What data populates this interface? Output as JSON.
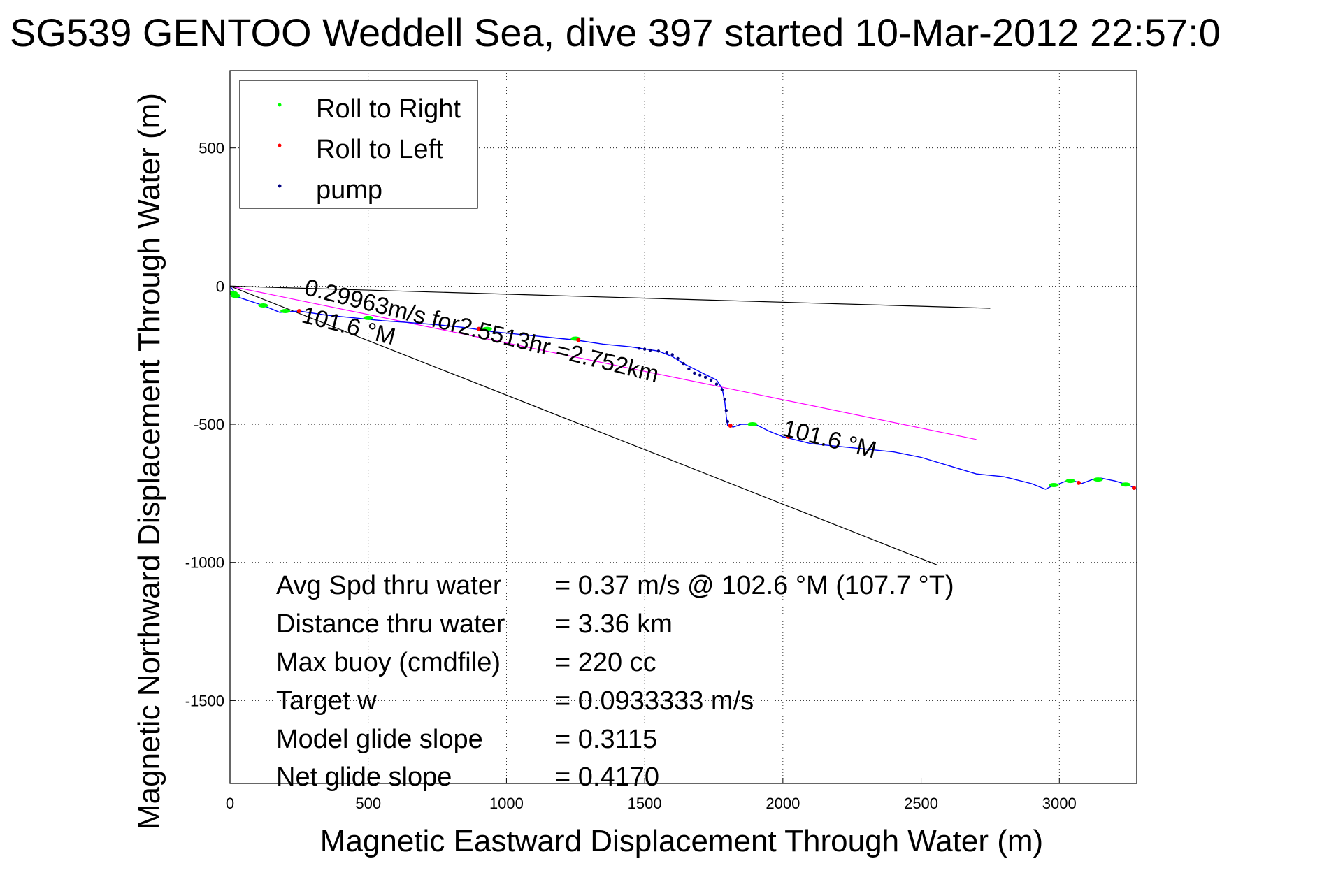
{
  "chart_data": {
    "type": "line",
    "title": "SG539 GENTOO Weddell Sea, dive 397 started 10-Mar-2012 22:57:0",
    "xlabel": "Magnetic Eastward Displacement Through Water (m)",
    "ylabel": "Magnetic Northward Displacement Through Water (m)",
    "xlim": [
      0,
      3280
    ],
    "ylim": [
      -1800,
      780
    ],
    "xticks": [
      0,
      500,
      1000,
      1500,
      2000,
      2500,
      3000
    ],
    "yticks": [
      500,
      0,
      -500,
      -1000,
      -1500
    ],
    "grid": true,
    "legend_position": "top-left",
    "legend": [
      {
        "label": "Roll to Right",
        "color": "#00ff00"
      },
      {
        "label": "Roll to Left",
        "color": "#ff0000"
      },
      {
        "label": "pump",
        "color": "#000080"
      }
    ],
    "track": {
      "color": "#0000ff",
      "x": [
        0,
        30,
        60,
        120,
        180,
        250,
        350,
        450,
        550,
        650,
        750,
        850,
        950,
        1050,
        1150,
        1250,
        1350,
        1450,
        1550,
        1600,
        1640,
        1680,
        1720,
        1760,
        1780,
        1790,
        1795,
        1800,
        1820,
        1850,
        1900,
        1950,
        2000,
        2100,
        2200,
        2300,
        2400,
        2500,
        2600,
        2700,
        2800,
        2900,
        2950,
        2980,
        3000,
        3040,
        3080,
        3120,
        3150,
        3200,
        3250,
        3280
      ],
      "y": [
        0,
        -40,
        -50,
        -70,
        -95,
        -90,
        -105,
        -115,
        -125,
        -132,
        -140,
        -150,
        -165,
        -175,
        -185,
        -195,
        -210,
        -220,
        -235,
        -255,
        -280,
        -300,
        -320,
        -340,
        -370,
        -420,
        -470,
        -505,
        -510,
        -500,
        -500,
        -525,
        -545,
        -570,
        -580,
        -590,
        -600,
        -620,
        -650,
        -680,
        -690,
        -715,
        -735,
        -720,
        -715,
        -700,
        -715,
        -700,
        -695,
        -705,
        -720,
        -735
      ]
    },
    "roll_right_x": [
      10,
      20,
      120,
      200,
      500,
      930,
      1250,
      1890,
      2980,
      3040,
      3140,
      3240
    ],
    "roll_right_y": [
      -25,
      -35,
      -70,
      -90,
      -115,
      -155,
      -190,
      -500,
      -720,
      -705,
      -700,
      -718
    ],
    "roll_left_x": [
      250,
      900,
      1260,
      1810,
      2020,
      3070,
      3270
    ],
    "roll_left_y": [
      -90,
      -155,
      -195,
      -505,
      -545,
      -712,
      -730
    ],
    "pump_x": [
      1480,
      1500,
      1520,
      1550,
      1580,
      1600,
      1620,
      1640,
      1660,
      1680,
      1700,
      1720,
      1740,
      1760,
      1780,
      1790,
      1795,
      1800
    ],
    "pump_y": [
      -225,
      -228,
      -232,
      -235,
      -240,
      -248,
      -262,
      -280,
      -300,
      -315,
      -322,
      -330,
      -340,
      -355,
      -375,
      -410,
      -450,
      -490
    ],
    "lines": [
      {
        "name": "black-upper",
        "color": "#000000",
        "x": [
          0,
          2750
        ],
        "y": [
          0,
          -80
        ]
      },
      {
        "name": "magenta-avg",
        "color": "#ff00ff",
        "x": [
          0,
          2700
        ],
        "y": [
          0,
          -555
        ]
      },
      {
        "name": "black-lower",
        "color": "#000000",
        "x": [
          0,
          2560
        ],
        "y": [
          0,
          -1010
        ]
      }
    ],
    "annotations": [
      {
        "text": "0.29963m/s for2.5513hr =2.752km",
        "x": 265,
        "y": -30,
        "angle": 14
      },
      {
        "text": "101.6 °M",
        "x": 255,
        "y": -130,
        "angle": 14
      },
      {
        "text": "101.6 °M",
        "x": 1995,
        "y": -540,
        "angle": 14
      }
    ]
  },
  "stats": [
    {
      "label": "Avg Spd thru water",
      "value": "=  0.37 m/s @ 102.6 °M (107.7 °T)"
    },
    {
      "label": "Distance thru water",
      "value": "=  3.36 km"
    },
    {
      "label": "Max buoy (cmdfile)",
      "value": "= 220 cc"
    },
    {
      "label": "Target w",
      "value": "= 0.0933333 m/s"
    },
    {
      "label": "Model glide slope",
      "value": "= 0.3115"
    },
    {
      "label": "Net glide slope",
      "value": "= 0.4170"
    }
  ]
}
